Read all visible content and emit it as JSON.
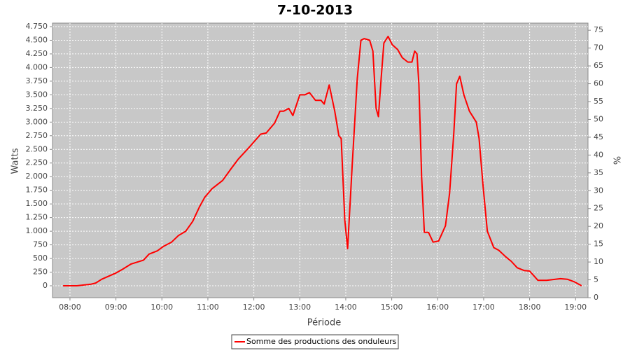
{
  "chart_data": {
    "type": "line",
    "title": "7-10-2013",
    "x_label": "Période",
    "y_label": "Watts",
    "y2_label": "%",
    "x": [
      7.85,
      8.15,
      8.46,
      8.56,
      8.69,
      8.99,
      9.14,
      9.33,
      9.6,
      9.72,
      9.9,
      10.03,
      10.21,
      10.36,
      10.52,
      10.67,
      10.82,
      10.93,
      11.09,
      11.32,
      11.51,
      11.66,
      11.89,
      12.15,
      12.27,
      12.45,
      12.57,
      12.65,
      12.76,
      12.85,
      13.0,
      13.11,
      13.21,
      13.34,
      13.46,
      13.53,
      13.64,
      13.76,
      13.85,
      13.9,
      13.98,
      14.04,
      14.14,
      14.25,
      14.33,
      14.4,
      14.52,
      14.59,
      14.66,
      14.71,
      14.77,
      14.83,
      14.92,
      15.01,
      15.13,
      15.23,
      15.35,
      15.44,
      15.5,
      15.55,
      15.59,
      15.65,
      15.71,
      15.8,
      15.9,
      16.02,
      16.17,
      16.26,
      16.35,
      16.41,
      16.48,
      16.57,
      16.69,
      16.84,
      16.9,
      16.99,
      17.08,
      17.22,
      17.33,
      17.48,
      17.6,
      17.73,
      17.88,
      18.0,
      18.18,
      18.37,
      18.67,
      18.82,
      18.98,
      19.13
    ],
    "series": [
      {
        "name": "Somme des productions des onduleurs",
        "color": "#ff0000",
        "values": [
          0,
          0,
          30,
          50,
          120,
          230,
          300,
          400,
          470,
          580,
          640,
          720,
          800,
          920,
          1000,
          1180,
          1450,
          1620,
          1780,
          1930,
          2150,
          2320,
          2530,
          2780,
          2800,
          2980,
          3200,
          3200,
          3250,
          3120,
          3500,
          3500,
          3540,
          3400,
          3400,
          3330,
          3680,
          3200,
          2750,
          2700,
          1200,
          680,
          2200,
          3800,
          4500,
          4530,
          4500,
          4300,
          3250,
          3100,
          3800,
          4450,
          4570,
          4420,
          4330,
          4180,
          4100,
          4100,
          4300,
          4250,
          3700,
          2000,
          980,
          980,
          800,
          820,
          1100,
          1700,
          2800,
          3700,
          3840,
          3500,
          3200,
          3000,
          2700,
          1800,
          1000,
          700,
          650,
          530,
          450,
          330,
          280,
          270,
          100,
          100,
          130,
          120,
          70,
          0
        ]
      }
    ],
    "xlim": [
      7.62,
      19.27
    ],
    "xticks": [
      {
        "value": 8,
        "label": "08:00"
      },
      {
        "value": 9,
        "label": "09:00"
      },
      {
        "value": 10,
        "label": "10:00"
      },
      {
        "value": 11,
        "label": "11:00"
      },
      {
        "value": 12,
        "label": "12:00"
      },
      {
        "value": 13,
        "label": "13:00"
      },
      {
        "value": 14,
        "label": "14:00"
      },
      {
        "value": 15,
        "label": "15:00"
      },
      {
        "value": 16,
        "label": "16:00"
      },
      {
        "value": 17,
        "label": "17:00"
      },
      {
        "value": 18,
        "label": "18:00"
      },
      {
        "value": 19,
        "label": "19:00"
      }
    ],
    "ylim": [
      -218,
      4814
    ],
    "yticks": [
      0,
      250,
      500,
      750,
      {
        "value": 1000,
        "label": "1.000"
      },
      {
        "value": 1250,
        "label": "1.250"
      },
      {
        "value": 1500,
        "label": "1.500"
      },
      {
        "value": 1750,
        "label": "1.750"
      },
      {
        "value": 2000,
        "label": "2.000"
      },
      {
        "value": 2250,
        "label": "2.250"
      },
      {
        "value": 2500,
        "label": "2.500"
      },
      {
        "value": 2750,
        "label": "2.750"
      },
      {
        "value": 3000,
        "label": "3.000"
      },
      {
        "value": 3250,
        "label": "3.250"
      },
      {
        "value": 3500,
        "label": "3.500"
      },
      {
        "value": 3750,
        "label": "3.750"
      },
      {
        "value": 4000,
        "label": "4.000"
      },
      {
        "value": 4250,
        "label": "4.250"
      },
      {
        "value": 4500,
        "label": "4.500"
      },
      {
        "value": 4750,
        "label": "4.750"
      }
    ],
    "y2lim": [
      0,
      77
    ],
    "y2ticks": [
      0,
      5,
      10,
      15,
      20,
      25,
      30,
      35,
      40,
      45,
      50,
      55,
      60,
      65,
      70,
      75
    ],
    "grid": true,
    "plot_background": "#c8c8c8"
  }
}
